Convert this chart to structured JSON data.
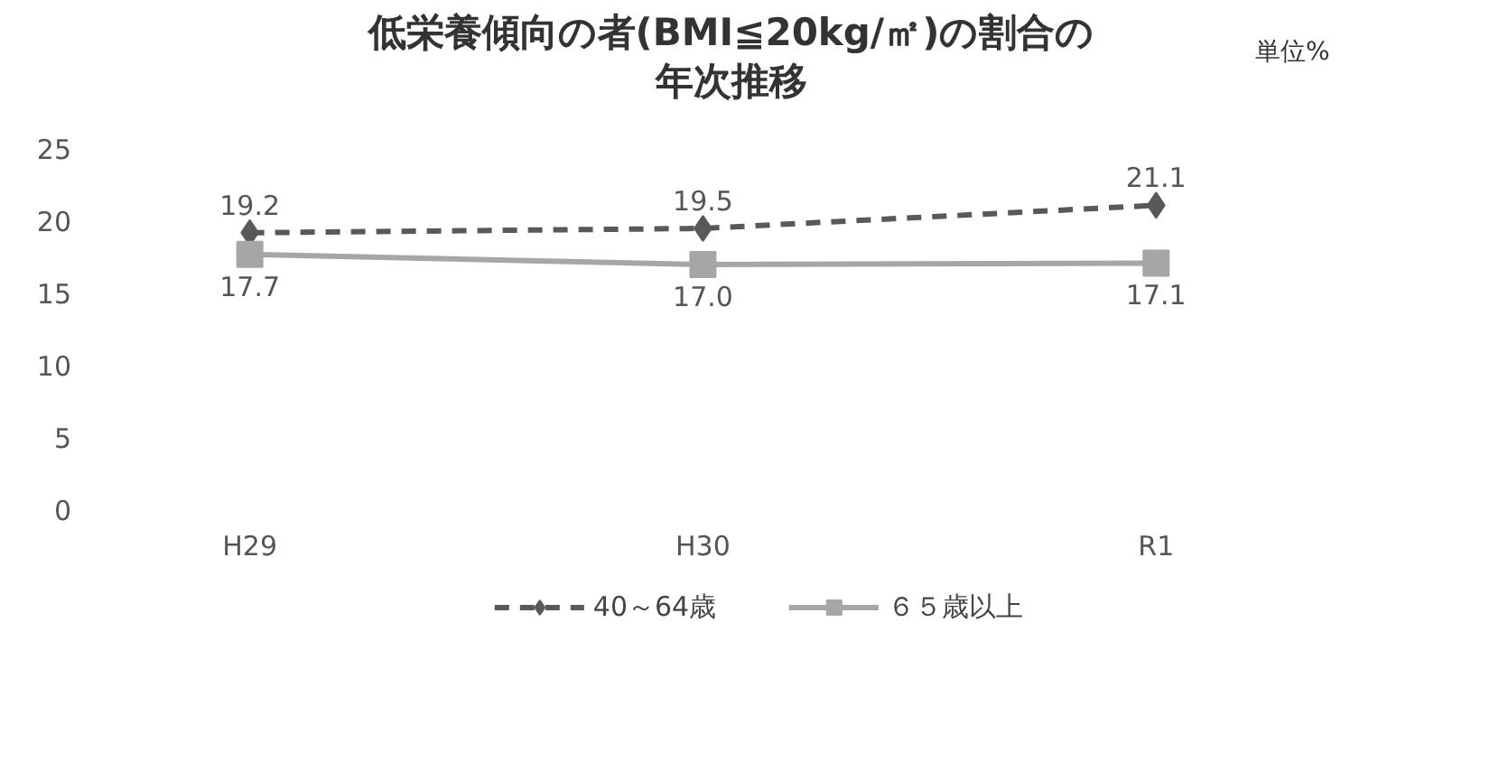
{
  "chart_data": {
    "type": "line",
    "title": "低栄養傾向の者(BMI≦20kg/㎡)の割合の年次推移",
    "annotations": [
      "単位%"
    ],
    "categories": [
      "H29",
      "H30",
      "R1"
    ],
    "series": [
      {
        "name": "40～64歳",
        "color": "#595959",
        "values": [
          19.2,
          19.5,
          21.1
        ],
        "value_labels": [
          "19.2",
          "19.5",
          "21.1"
        ],
        "marker": "diamond",
        "line_style": "dashed"
      },
      {
        "name": "６５歳以上",
        "color": "#a6a6a6",
        "values": [
          17.7,
          17.0,
          17.1
        ],
        "value_labels": [
          "17.7",
          "17.0",
          "17.1"
        ],
        "marker": "square",
        "line_style": "solid"
      }
    ],
    "ylim": [
      0,
      25
    ],
    "yticks": [
      0,
      5,
      10,
      15,
      20,
      25
    ],
    "grid": false,
    "legend": "bottom"
  }
}
